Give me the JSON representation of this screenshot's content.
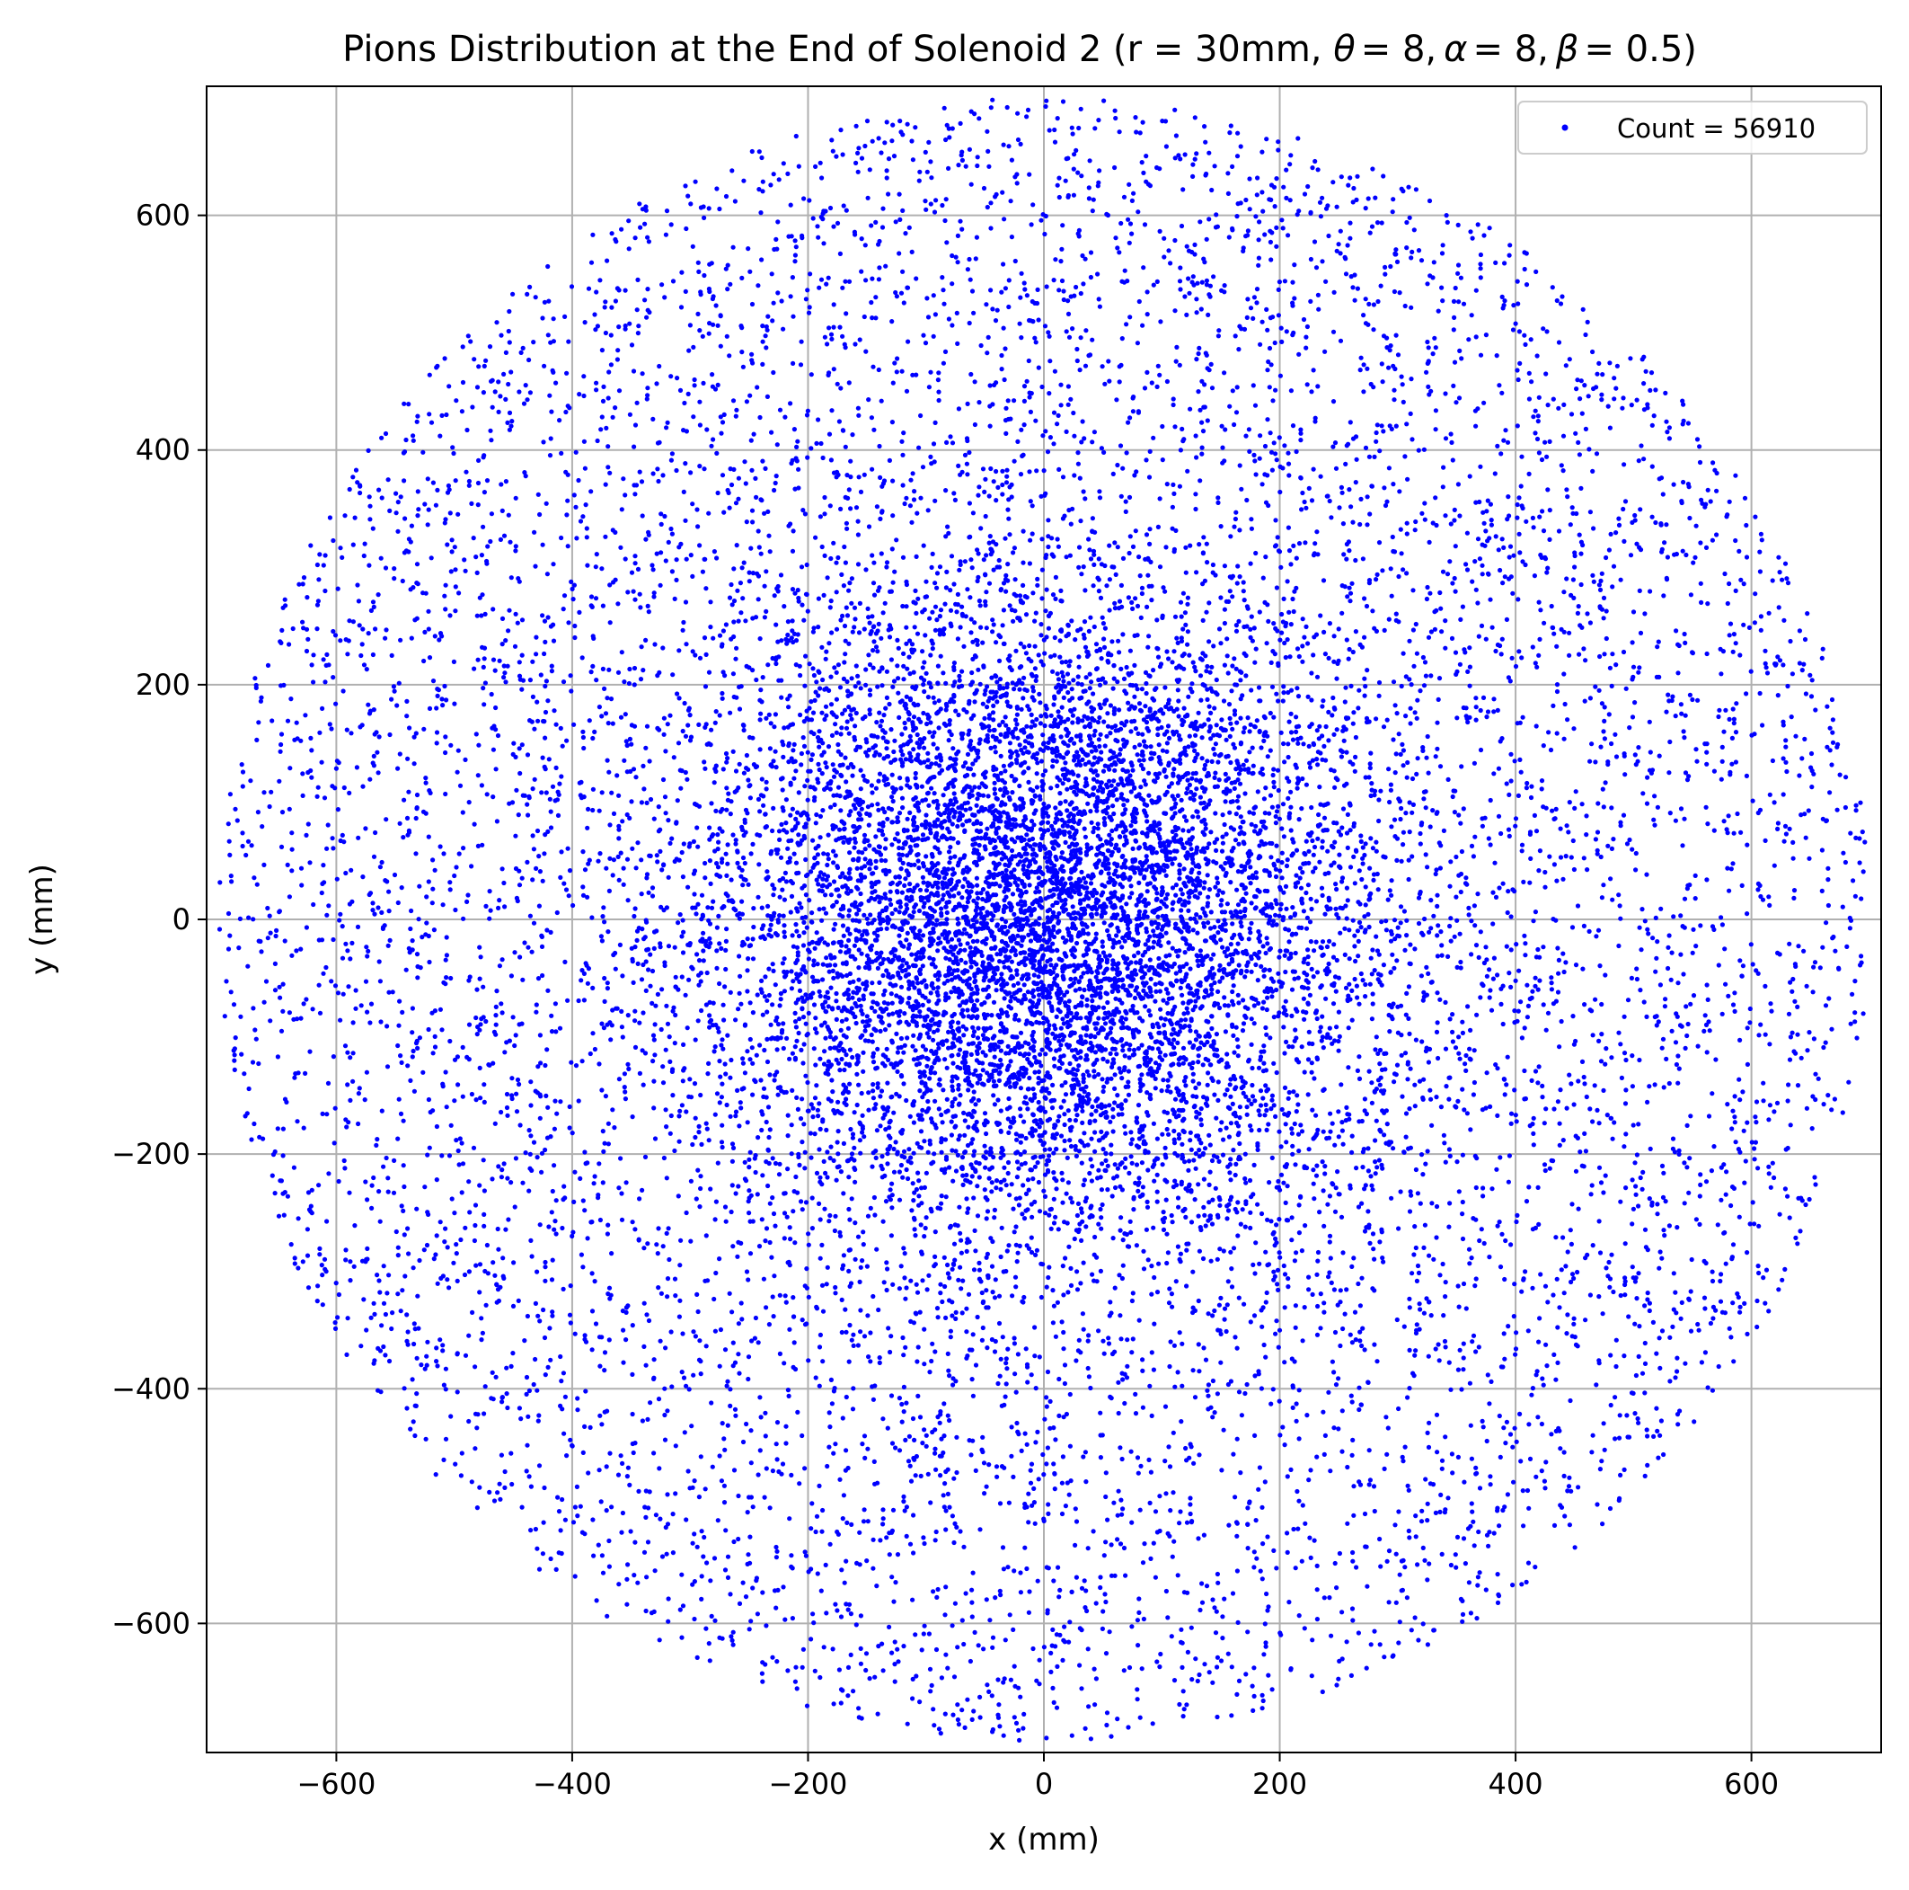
{
  "colors": {
    "marker": "#0000ff",
    "grid": "#b0b0b0",
    "axis": "#000000",
    "background": "#ffffff",
    "legend_border": "#cccccc"
  },
  "chart_data": {
    "type": "scatter",
    "title_main": "Pions Distribution at the End of Solenoid 2 (r = 30mm, ",
    "title_greek": [
      {
        "symbol": "θ",
        "value": "= 8,"
      },
      {
        "symbol": "α",
        "value": "= 8,"
      },
      {
        "symbol": "β",
        "value": "= 0.5)"
      }
    ],
    "xlabel": "x (mm)",
    "ylabel": "y (mm)",
    "xlim": [
      -710,
      710
    ],
    "ylim": [
      -710,
      710
    ],
    "xticks": [
      -600,
      -400,
      -200,
      0,
      200,
      400,
      600
    ],
    "yticks": [
      -600,
      -400,
      -200,
      0,
      200,
      400,
      600
    ],
    "xtick_labels": [
      "−600",
      "−400",
      "−200",
      "0",
      "200",
      "400",
      "600"
    ],
    "ytick_labels": [
      "−600",
      "−400",
      "−200",
      "0",
      "200",
      "400",
      "600"
    ],
    "grid": true,
    "legend": {
      "position": "top-right",
      "label": "Count = 56910"
    },
    "count": 56910,
    "distribution": {
      "shape": "disk",
      "max_radius": 700,
      "center": [
        0,
        0
      ],
      "dense_core_radius": 220,
      "description_values": {
        "core_sigma": 140,
        "halo_fraction": 0.55
      }
    }
  }
}
